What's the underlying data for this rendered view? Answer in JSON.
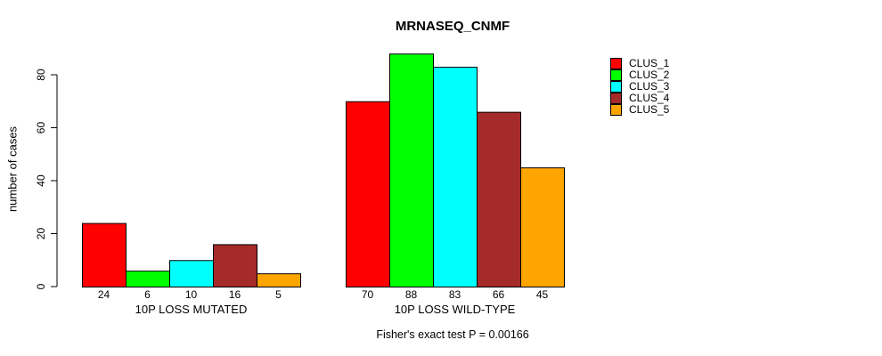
{
  "chart_data": {
    "type": "bar",
    "title": "MRNASEQ_CNMF",
    "ylabel": "number of cases",
    "xlabel": "",
    "yticks": [
      0,
      20,
      40,
      60,
      80
    ],
    "ylim": [
      0,
      88
    ],
    "grid": false,
    "legend_position": "right",
    "categories": [
      "10P LOSS MUTATED",
      "10P LOSS WILD-TYPE"
    ],
    "series_names": [
      "CLUS_1",
      "CLUS_2",
      "CLUS_3",
      "CLUS_4",
      "CLUS_5"
    ],
    "colors": [
      "#FF0000",
      "#00FF00",
      "#00FFFF",
      "#A52A2A",
      "#FFA500"
    ],
    "groups": [
      {
        "label": "10P LOSS MUTATED",
        "values": [
          24,
          6,
          10,
          16,
          5
        ]
      },
      {
        "label": "10P LOSS WILD-TYPE",
        "values": [
          70,
          88,
          83,
          66,
          45
        ]
      }
    ],
    "annotation": "Fisher's exact test P = 0.00166"
  }
}
